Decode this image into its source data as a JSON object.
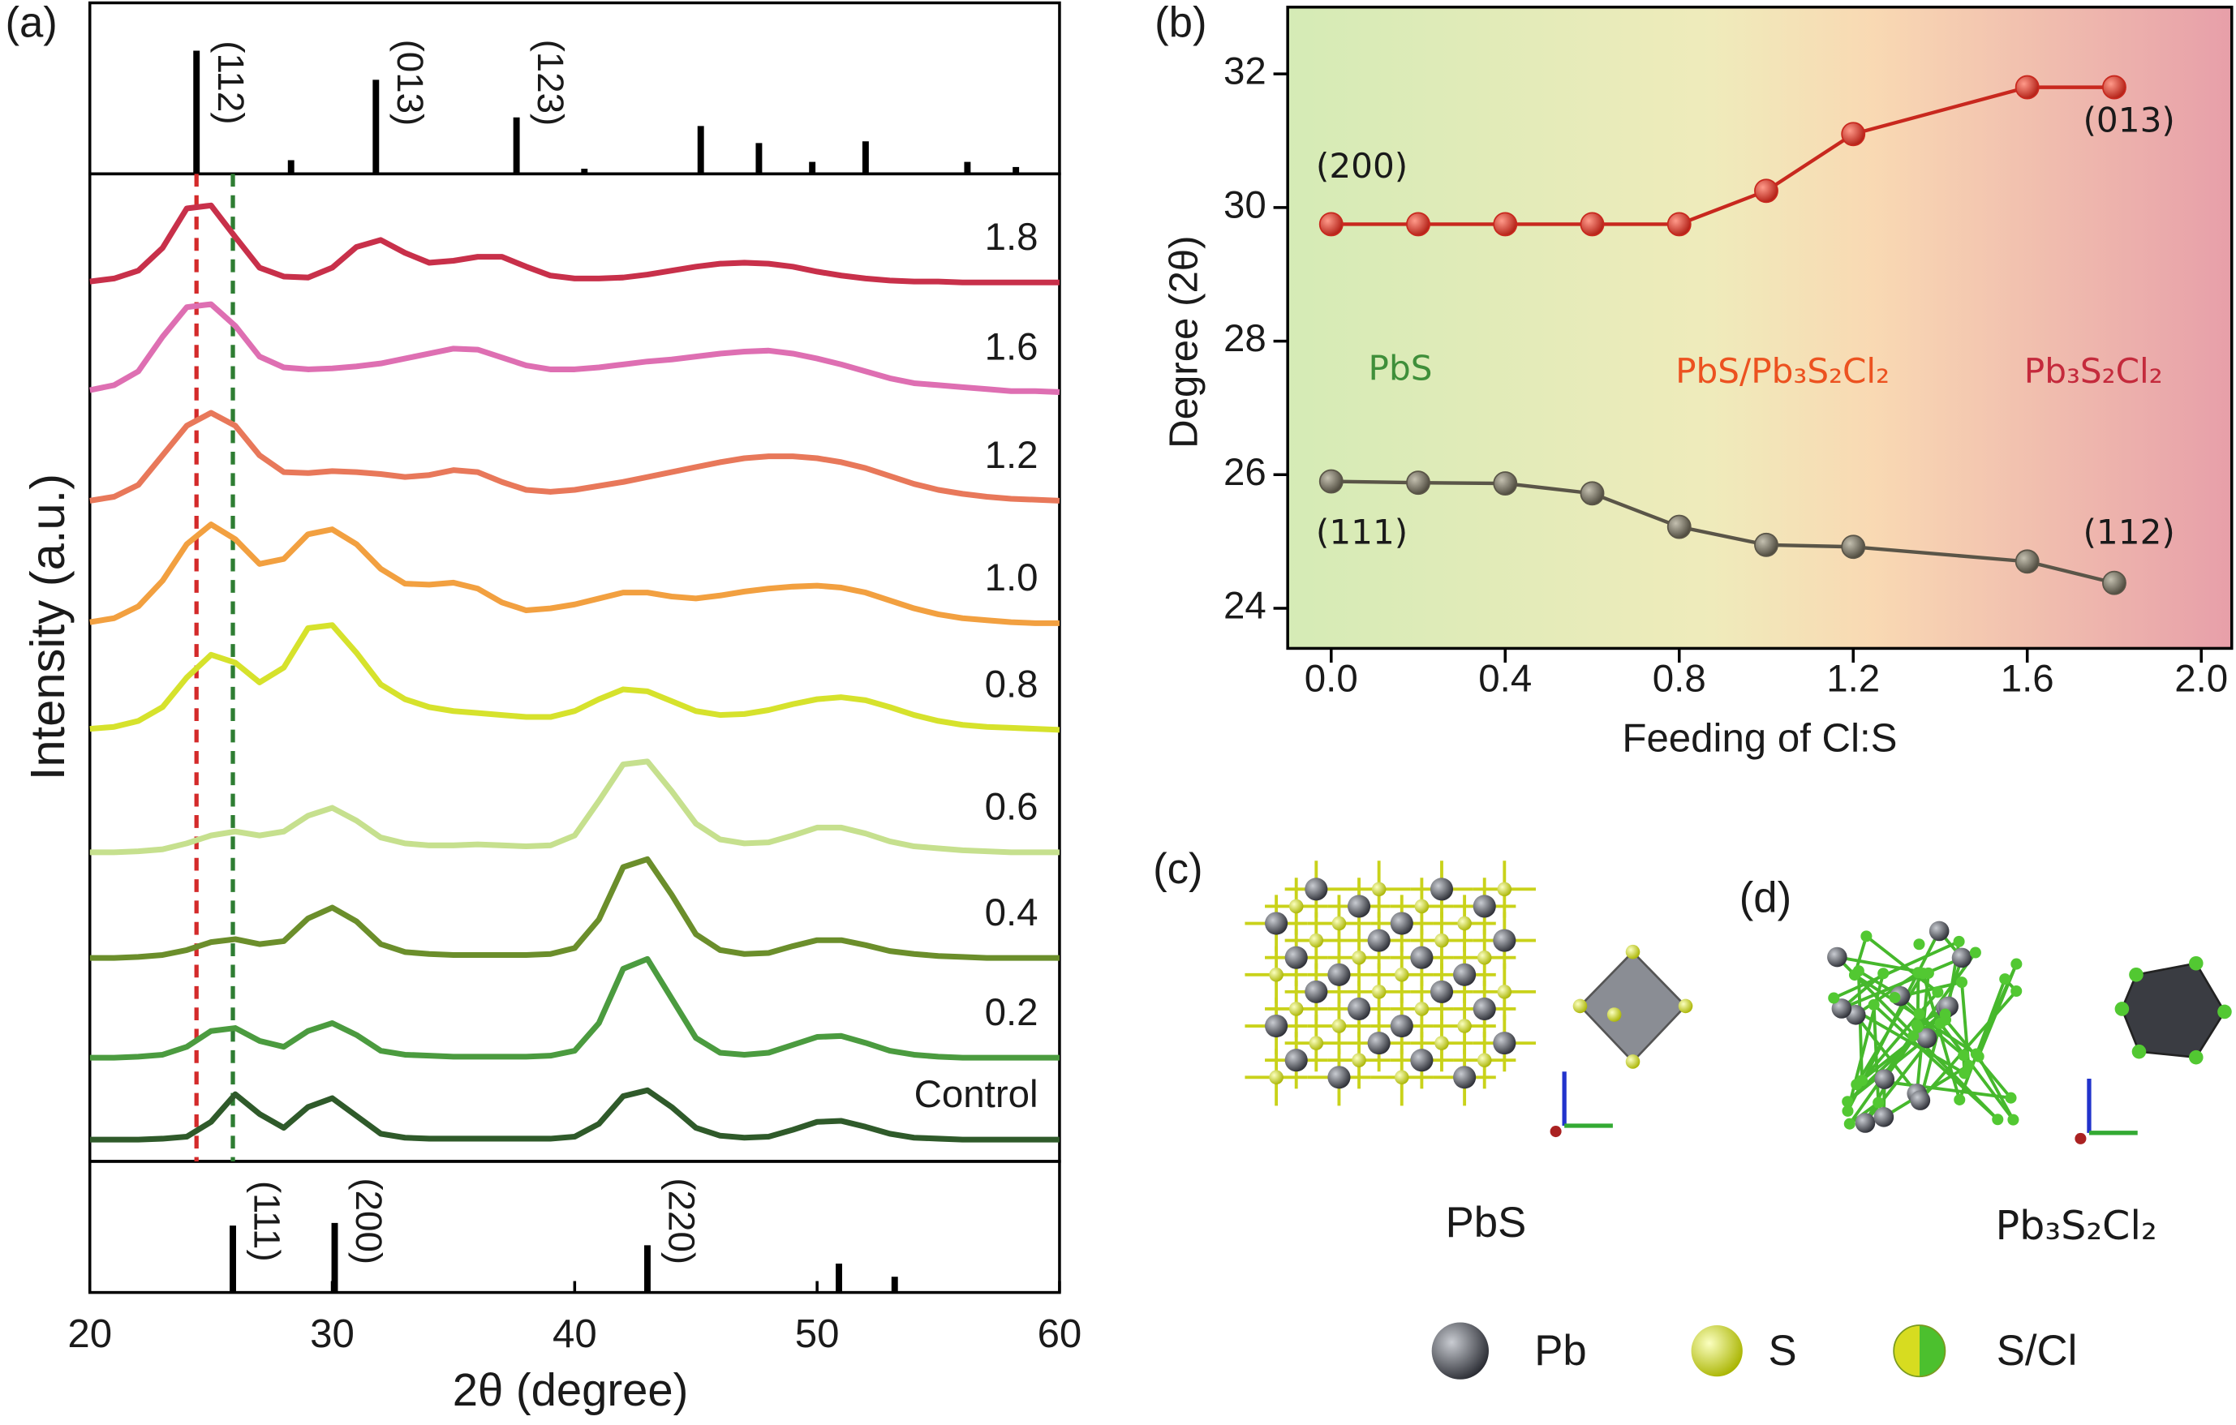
{
  "chart_data": [
    {
      "type": "line",
      "panel_label": "(a)",
      "xlabel": "2θ (degree)",
      "ylabel": "Intensity (a.u.)",
      "x": [
        20,
        21,
        22,
        23,
        24,
        25,
        26,
        27,
        28,
        29,
        30,
        31,
        32,
        33,
        34,
        35,
        36,
        37,
        38,
        39,
        40,
        41,
        42,
        43,
        44,
        45,
        46,
        47,
        48,
        49,
        50,
        51,
        52,
        53,
        54,
        55,
        56,
        57,
        58,
        59,
        60
      ],
      "xlim": [
        20,
        60
      ],
      "xticks": [
        20,
        30,
        40,
        50,
        60
      ],
      "ylim": [
        0,
        100
      ],
      "reference_lines": [
        {
          "x": 24.4,
          "color": "#d42a2a"
        },
        {
          "x": 25.9,
          "color": "#2e7d32"
        }
      ],
      "series": [
        {
          "name": "Control",
          "color": "#2f5a2a",
          "values": [
            2.2,
            2.2,
            2.2,
            2.3,
            2.5,
            4.0,
            6.8,
            4.8,
            3.4,
            5.5,
            6.4,
            4.6,
            2.8,
            2.4,
            2.3,
            2.3,
            2.3,
            2.3,
            2.3,
            2.3,
            2.5,
            3.8,
            6.6,
            7.2,
            5.5,
            3.4,
            2.6,
            2.4,
            2.5,
            3.2,
            4.0,
            4.1,
            3.5,
            2.8,
            2.4,
            2.3,
            2.2,
            2.2,
            2.2,
            2.2,
            2.2
          ]
        },
        {
          "name": "0.2",
          "color": "#4b9b3f",
          "values": [
            10.5,
            10.5,
            10.6,
            10.8,
            11.6,
            13.2,
            13.5,
            12.2,
            11.6,
            13.2,
            14.0,
            12.8,
            11.2,
            10.8,
            10.7,
            10.6,
            10.6,
            10.6,
            10.6,
            10.7,
            11.2,
            14.0,
            19.5,
            20.5,
            16.5,
            12.5,
            11.0,
            10.8,
            11.0,
            11.8,
            12.6,
            12.7,
            12.0,
            11.2,
            10.8,
            10.6,
            10.5,
            10.5,
            10.5,
            10.5,
            10.5
          ]
        },
        {
          "name": "0.4",
          "color": "#6b8e2b",
          "values": [
            20.6,
            20.6,
            20.7,
            20.9,
            21.4,
            22.2,
            22.5,
            22.0,
            22.3,
            24.6,
            25.7,
            24.3,
            22.0,
            21.2,
            21.0,
            20.9,
            20.9,
            20.9,
            20.9,
            21.0,
            21.6,
            24.5,
            29.8,
            30.6,
            27.0,
            23.0,
            21.4,
            21.0,
            21.1,
            21.8,
            22.4,
            22.4,
            21.9,
            21.3,
            21.0,
            20.8,
            20.7,
            20.6,
            20.6,
            20.6,
            20.6
          ]
        },
        {
          "name": "0.6",
          "color": "#c6e08e",
          "values": [
            31.3,
            31.3,
            31.4,
            31.6,
            32.2,
            33.0,
            33.4,
            33.0,
            33.4,
            35.0,
            35.8,
            34.5,
            32.8,
            32.2,
            32.0,
            32.0,
            32.1,
            32.0,
            31.9,
            32.0,
            33.0,
            36.5,
            40.2,
            40.5,
            37.5,
            34.2,
            32.6,
            32.2,
            32.3,
            33.0,
            33.8,
            33.8,
            33.2,
            32.4,
            31.9,
            31.7,
            31.5,
            31.4,
            31.3,
            31.3,
            31.3
          ]
        },
        {
          "name": "0.8",
          "color": "#d6e22c",
          "values": [
            43.8,
            44.0,
            44.6,
            46.0,
            49.0,
            51.3,
            50.5,
            48.5,
            50.0,
            54.0,
            54.3,
            51.5,
            48.3,
            46.8,
            46.0,
            45.6,
            45.4,
            45.2,
            45.0,
            45.0,
            45.6,
            46.8,
            47.8,
            47.6,
            46.6,
            45.6,
            45.2,
            45.3,
            45.7,
            46.3,
            46.8,
            47.0,
            46.7,
            46.0,
            45.2,
            44.6,
            44.2,
            44.0,
            43.9,
            43.8,
            43.7
          ]
        },
        {
          "name": "1.0",
          "color": "#f2a040",
          "values": [
            54.6,
            55.0,
            56.2,
            58.8,
            62.5,
            64.5,
            63.0,
            60.5,
            61.0,
            63.5,
            64.0,
            62.5,
            60.0,
            58.5,
            58.4,
            58.6,
            58.0,
            56.6,
            55.8,
            56.0,
            56.4,
            57.0,
            57.6,
            57.6,
            57.2,
            57.0,
            57.3,
            57.7,
            58.0,
            58.2,
            58.3,
            58.1,
            57.6,
            56.8,
            56.0,
            55.4,
            55.0,
            54.8,
            54.6,
            54.5,
            54.5
          ]
        },
        {
          "name": "1.2",
          "color": "#e8785a",
          "values": [
            66.9,
            67.3,
            68.5,
            71.5,
            74.5,
            75.8,
            74.5,
            71.5,
            69.8,
            69.7,
            69.9,
            69.8,
            69.6,
            69.3,
            69.5,
            70.0,
            69.8,
            68.8,
            68.0,
            67.8,
            68.0,
            68.4,
            68.8,
            69.3,
            69.8,
            70.3,
            70.8,
            71.2,
            71.4,
            71.4,
            71.2,
            70.8,
            70.2,
            69.4,
            68.6,
            68.0,
            67.6,
            67.3,
            67.1,
            67.0,
            66.9
          ]
        },
        {
          "name": "1.6",
          "color": "#de6fb2",
          "values": [
            78.1,
            78.6,
            80.0,
            83.5,
            86.5,
            86.8,
            84.6,
            81.5,
            80.4,
            80.2,
            80.3,
            80.5,
            80.8,
            81.3,
            81.8,
            82.3,
            82.2,
            81.4,
            80.6,
            80.2,
            80.2,
            80.4,
            80.7,
            81.0,
            81.2,
            81.5,
            81.8,
            82.0,
            82.1,
            81.8,
            81.3,
            80.7,
            80.0,
            79.3,
            78.8,
            78.6,
            78.4,
            78.2,
            78.0,
            78.0,
            77.9
          ]
        },
        {
          "name": "1.8",
          "color": "#c8304a",
          "values": [
            89.1,
            89.4,
            90.2,
            92.5,
            96.5,
            96.8,
            93.6,
            90.5,
            89.6,
            89.5,
            90.5,
            92.6,
            93.3,
            92.0,
            91.0,
            91.2,
            91.6,
            91.6,
            90.6,
            89.7,
            89.4,
            89.4,
            89.5,
            89.8,
            90.2,
            90.6,
            90.9,
            91.0,
            90.9,
            90.6,
            90.1,
            89.7,
            89.4,
            89.2,
            89.1,
            89.1,
            89.0,
            89.0,
            89.0,
            89.0,
            89.0
          ]
        }
      ]
    },
    {
      "type": "stick",
      "x": [
        24.4,
        28.3,
        31.8,
        37.6,
        40.4,
        45.2,
        47.6,
        49.8,
        52.0,
        56.2,
        58.2
      ],
      "values": [
        72,
        8,
        55,
        33,
        3,
        28,
        18,
        7,
        19,
        7,
        4
      ],
      "peak_labels": [
        "(112)",
        null,
        "(013)",
        "(123)",
        null,
        null,
        null,
        null,
        null,
        null,
        null
      ],
      "ylim": [
        0,
        100
      ],
      "color": "#000000"
    },
    {
      "type": "stick",
      "x": [
        25.9,
        30.1,
        43.0,
        50.9,
        53.2
      ],
      "values": [
        51,
        53,
        36,
        22,
        12
      ],
      "peak_labels": [
        "(111)",
        "(200)",
        "(220)",
        null,
        null
      ],
      "ylim": [
        0,
        100
      ],
      "color": "#000000"
    },
    {
      "type": "line",
      "panel_label": "(b)",
      "xlabel": "Feeding of Cl:S",
      "ylabel": "Degree (2θ)",
      "x": [
        0.0,
        0.2,
        0.4,
        0.6,
        0.8,
        1.0,
        1.2,
        1.6,
        1.8
      ],
      "xlim": [
        -0.1,
        2.07
      ],
      "xticks": [
        {
          "value": 0,
          "label": "0.0"
        },
        0.4,
        0.8,
        1.2,
        1.6,
        {
          "value": 2,
          "label": "2.0"
        }
      ],
      "ylim": [
        23.4,
        33.0
      ],
      "yticks": [
        24,
        26,
        28,
        30,
        32
      ],
      "series": [
        {
          "color": "#c8281e",
          "values": [
            29.75,
            29.75,
            29.75,
            29.75,
            29.75,
            30.25,
            31.1,
            31.8,
            31.8
          ]
        },
        {
          "color": "#5a5548",
          "values": [
            25.9,
            25.88,
            25.87,
            25.72,
            25.22,
            24.95,
            24.92,
            24.7,
            24.38
          ]
        }
      ],
      "annotations": [
        {
          "text": "(200)"
        },
        {
          "text": "(013)"
        },
        {
          "text": "(111)"
        },
        {
          "text": "(112)"
        },
        {
          "text": "PbS",
          "color": "#3f8f3a"
        },
        {
          "text": "PbS/Pb₃S₂Cl₂",
          "color": "#ec5220"
        },
        {
          "text": "Pb₃S₂Cl₂",
          "color": "#c42a3c"
        }
      ]
    }
  ],
  "structures": {
    "c": {
      "panel_label": "(c)",
      "caption": "PbS"
    },
    "d": {
      "panel_label": "(d)",
      "caption": "Pb₃S₂Cl₂"
    },
    "legend": [
      "Pb",
      "S",
      "S/Cl"
    ]
  }
}
